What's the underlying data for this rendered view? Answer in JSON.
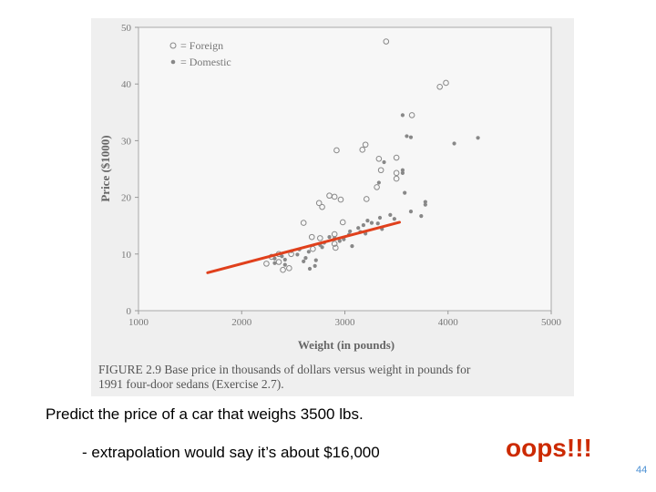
{
  "chart_data": {
    "type": "scatter",
    "xlabel": "Weight (in pounds)",
    "ylabel": "Price ($1000)",
    "xlim": [
      1000,
      5000
    ],
    "ylim": [
      0,
      50
    ],
    "x_ticks": [
      "1000",
      "2000",
      "3000",
      "4000",
      "5000"
    ],
    "y_ticks": [
      "0",
      "10",
      "20",
      "30",
      "40",
      "50"
    ],
    "legend_position": "top-left",
    "series": [
      {
        "name": "= Foreign",
        "marker": "open-circle",
        "points": [
          [
            3400,
            47.5
          ],
          [
            3920,
            39.5
          ],
          [
            3980,
            40.2
          ],
          [
            3650,
            34.5
          ],
          [
            2920,
            28.3
          ],
          [
            3170,
            28.4
          ],
          [
            3200,
            29.3
          ],
          [
            3330,
            26.8
          ],
          [
            3500,
            27.0
          ],
          [
            3350,
            24.8
          ],
          [
            3500,
            24.3
          ],
          [
            3500,
            23.3
          ],
          [
            3310,
            21.8
          ],
          [
            3210,
            19.7
          ],
          [
            2850,
            20.3
          ],
          [
            2900,
            20.1
          ],
          [
            2960,
            19.6
          ],
          [
            2750,
            19.0
          ],
          [
            2780,
            18.3
          ],
          [
            2980,
            15.6
          ],
          [
            2600,
            15.5
          ],
          [
            2900,
            13.5
          ],
          [
            2680,
            13.0
          ],
          [
            2760,
            12.8
          ],
          [
            2910,
            11.1
          ],
          [
            2690,
            10.9
          ],
          [
            2360,
            10.0
          ],
          [
            2480,
            10.0
          ],
          [
            2290,
            9.5
          ],
          [
            2360,
            8.6
          ],
          [
            2460,
            7.5
          ],
          [
            2400,
            7.2
          ],
          [
            2240,
            8.3
          ],
          [
            2900,
            11.8
          ]
        ]
      },
      {
        "name": "= Domestic",
        "marker": "filled-dot",
        "points": [
          [
            3560,
            34.5
          ],
          [
            3600,
            30.8
          ],
          [
            3640,
            30.6
          ],
          [
            4290,
            30.5
          ],
          [
            4060,
            29.5
          ],
          [
            3380,
            26.2
          ],
          [
            3560,
            24.8
          ],
          [
            3560,
            24.3
          ],
          [
            3330,
            22.6
          ],
          [
            3580,
            20.8
          ],
          [
            3780,
            19.2
          ],
          [
            3780,
            18.7
          ],
          [
            3740,
            16.7
          ],
          [
            3640,
            17.5
          ],
          [
            3440,
            16.9
          ],
          [
            3340,
            16.4
          ],
          [
            3480,
            16.2
          ],
          [
            3220,
            15.9
          ],
          [
            3260,
            15.5
          ],
          [
            3320,
            15.4
          ],
          [
            3180,
            15.1
          ],
          [
            3130,
            14.6
          ],
          [
            3360,
            14.4
          ],
          [
            3050,
            14.0
          ],
          [
            3150,
            13.9
          ],
          [
            3200,
            13.6
          ],
          [
            3040,
            13.4
          ],
          [
            2850,
            13.0
          ],
          [
            2900,
            12.8
          ],
          [
            2990,
            12.6
          ],
          [
            2950,
            12.3
          ],
          [
            2800,
            12.0
          ],
          [
            2760,
            11.6
          ],
          [
            3070,
            11.4
          ],
          [
            2780,
            11.2
          ],
          [
            2560,
            10.8
          ],
          [
            2480,
            10.5
          ],
          [
            2650,
            10.4
          ],
          [
            2540,
            9.9
          ],
          [
            2390,
            9.6
          ],
          [
            2320,
            9.2
          ],
          [
            2420,
            9.0
          ],
          [
            2620,
            9.3
          ],
          [
            2720,
            8.9
          ],
          [
            2600,
            8.7
          ],
          [
            2320,
            8.4
          ],
          [
            2710,
            7.9
          ],
          [
            2660,
            7.4
          ],
          [
            2420,
            8.1
          ]
        ]
      }
    ],
    "fit_line": {
      "from": [
        1670,
        6.7
      ],
      "to": [
        3530,
        15.6
      ],
      "color": "#e0401c"
    },
    "caption": "FIGURE 2.9   Base price in thousands of dollars versus weight in pounds for\n1991 four-door sedans (Exercise 2.7)."
  },
  "slide": {
    "prompt": "Predict the price of a car that weighs 3500 lbs.",
    "extrapolation": "- extrapolation would say it’s about $16,000",
    "oops": "oops!!!",
    "page_number": "44"
  },
  "colors": {
    "accent": "#cc2a00",
    "page_number": "#4a8fd3",
    "point": "#888888"
  }
}
